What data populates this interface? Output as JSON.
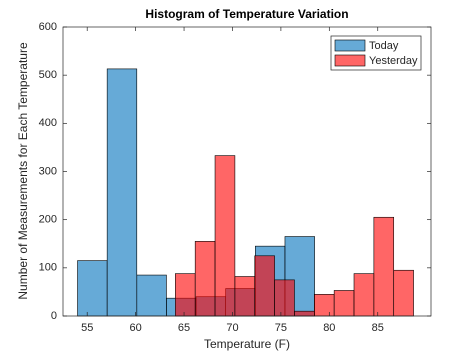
{
  "chart_data": {
    "type": "histogram",
    "title": "Histogram of Temperature Variation",
    "xlabel": "Temperature (F)",
    "ylabel": "Number of Measurements for Each Temperature",
    "series": [
      {
        "name": "Today",
        "color": "#0072bd",
        "bins": [
          54,
          57.06,
          60.12,
          63.18,
          66.24,
          69.3,
          72.36,
          75.42,
          78.48
        ],
        "values": [
          115,
          513,
          85,
          37,
          40,
          57,
          145,
          165
        ]
      },
      {
        "name": "Yesterday",
        "color": "#ff0000",
        "bins": [
          64.1,
          66.15,
          68.2,
          70.25,
          72.3,
          74.35,
          76.4,
          78.45,
          80.5,
          82.55,
          84.6,
          86.65,
          88.7
        ],
        "values": [
          88,
          155,
          333,
          82,
          125,
          75,
          10,
          45,
          53,
          88,
          205,
          95
        ]
      }
    ],
    "face_alpha": 0.6,
    "xlim": [
      52.5,
      90.5
    ],
    "xticks": [
      55,
      60,
      65,
      70,
      75,
      80,
      85
    ],
    "ylim": [
      0,
      600
    ],
    "yticks": [
      0,
      100,
      200,
      300,
      400,
      500,
      600
    ],
    "legend": "northeast"
  }
}
